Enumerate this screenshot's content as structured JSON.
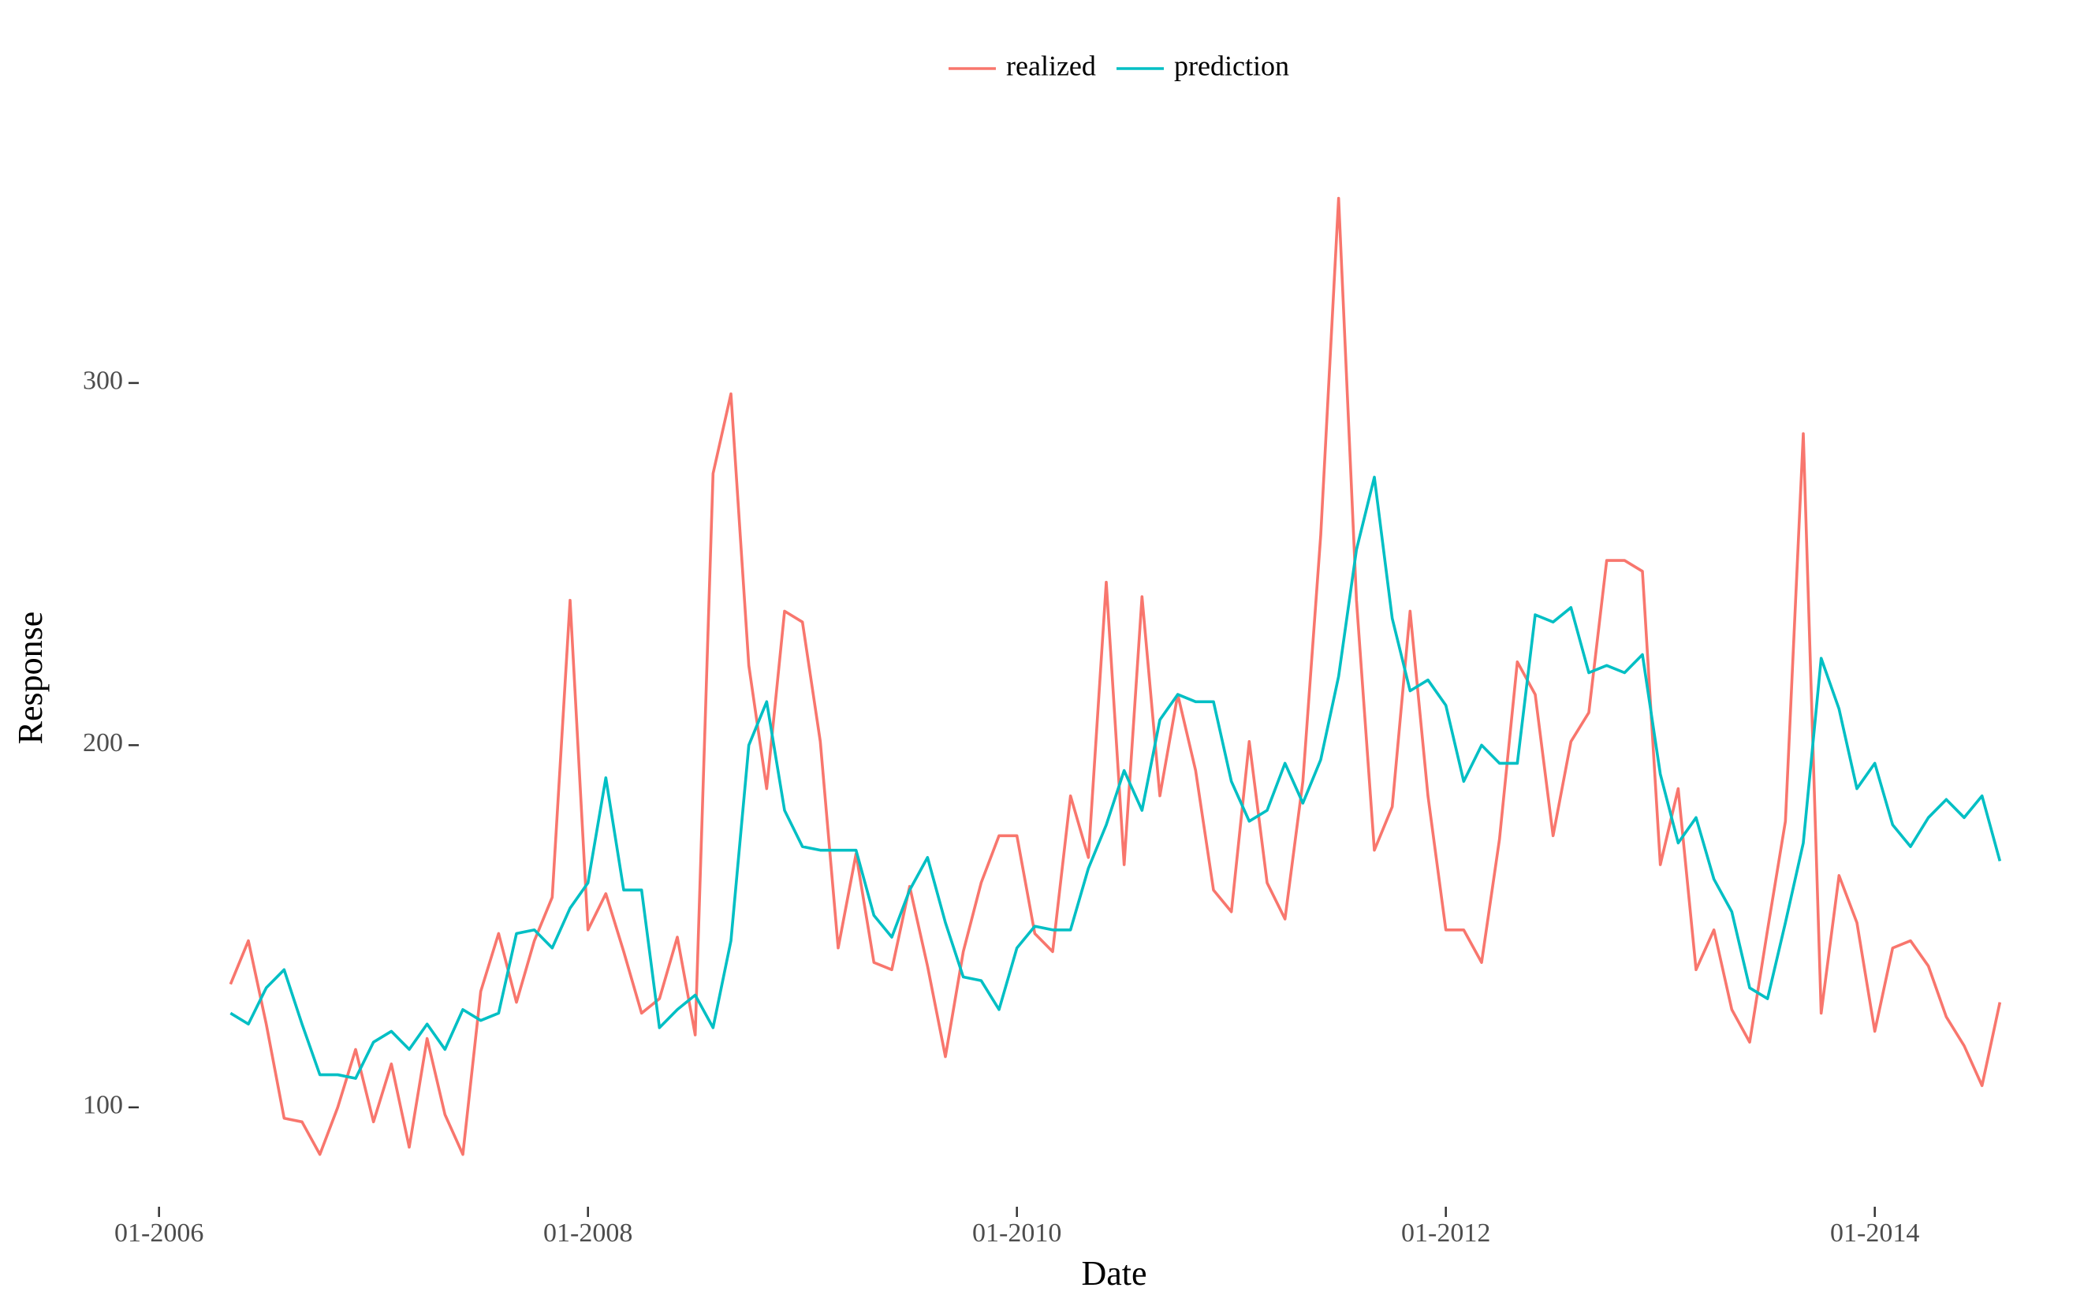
{
  "chart_data": {
    "type": "line",
    "x_label": "Date",
    "y_label": "Response",
    "x": [
      "2006-05",
      "2006-06",
      "2006-07",
      "2006-08",
      "2006-09",
      "2006-10",
      "2006-11",
      "2006-12",
      "2007-01",
      "2007-02",
      "2007-03",
      "2007-04",
      "2007-05",
      "2007-06",
      "2007-07",
      "2007-08",
      "2007-09",
      "2007-10",
      "2007-11",
      "2007-12",
      "2008-01",
      "2008-02",
      "2008-03",
      "2008-04",
      "2008-05",
      "2008-06",
      "2008-07",
      "2008-08",
      "2008-09",
      "2008-10",
      "2008-11",
      "2008-12",
      "2009-01",
      "2009-02",
      "2009-03",
      "2009-04",
      "2009-05",
      "2009-06",
      "2009-07",
      "2009-08",
      "2009-09",
      "2009-10",
      "2009-11",
      "2009-12",
      "2010-01",
      "2010-02",
      "2010-03",
      "2010-04",
      "2010-05",
      "2010-06",
      "2010-07",
      "2010-08",
      "2010-09",
      "2010-10",
      "2010-11",
      "2010-12",
      "2011-01",
      "2011-02",
      "2011-03",
      "2011-04",
      "2011-05",
      "2011-06",
      "2011-07",
      "2011-08",
      "2011-09",
      "2011-10",
      "2011-11",
      "2011-12",
      "2012-01",
      "2012-02",
      "2012-03",
      "2012-04",
      "2012-05",
      "2012-06",
      "2012-07",
      "2012-08",
      "2012-09",
      "2012-10",
      "2012-11",
      "2012-12",
      "2013-01",
      "2013-02",
      "2013-03",
      "2013-04",
      "2013-05",
      "2013-06",
      "2013-07",
      "2013-08",
      "2013-09",
      "2013-10",
      "2013-11",
      "2013-12",
      "2014-01",
      "2014-02",
      "2014-03",
      "2014-04",
      "2014-05",
      "2014-06",
      "2014-07",
      "2014-08"
    ],
    "series": [
      {
        "name": "realized",
        "color": "#F8766D",
        "values": [
          134,
          146,
          123,
          97,
          96,
          87,
          100,
          116,
          96,
          112,
          89,
          119,
          98,
          87,
          132,
          148,
          129,
          146,
          158,
          240,
          149,
          159,
          143,
          126,
          130,
          147,
          120,
          275,
          297,
          222,
          188,
          237,
          234,
          201,
          144,
          170,
          140,
          138,
          161,
          139,
          114,
          143,
          162,
          175,
          175,
          148,
          143,
          186,
          169,
          245,
          167,
          241,
          186,
          214,
          193,
          160,
          154,
          201,
          162,
          152,
          190,
          258,
          351,
          240,
          171,
          183,
          237,
          186,
          149,
          149,
          140,
          174,
          223,
          214,
          175,
          201,
          209,
          251,
          251,
          248,
          167,
          188,
          138,
          149,
          127,
          118,
          149,
          179,
          286,
          126,
          164,
          151,
          121,
          144,
          146,
          139,
          125,
          117,
          106,
          129
        ]
      },
      {
        "name": "prediction",
        "color": "#00BFC4",
        "values": [
          126,
          123,
          133,
          138,
          123,
          109,
          109,
          108,
          118,
          121,
          116,
          123,
          116,
          127,
          124,
          126,
          148,
          149,
          144,
          155,
          162,
          191,
          160,
          160,
          122,
          127,
          131,
          122,
          146,
          200,
          212,
          182,
          172,
          171,
          171,
          171,
          153,
          147,
          160,
          169,
          151,
          136,
          135,
          127,
          144,
          150,
          149,
          149,
          166,
          178,
          193,
          182,
          207,
          214,
          212,
          212,
          190,
          179,
          182,
          195,
          184,
          196,
          219,
          254,
          274,
          235,
          215,
          218,
          211,
          190,
          200,
          195,
          195,
          236,
          234,
          238,
          220,
          222,
          220,
          225,
          192,
          173,
          180,
          163,
          154,
          133,
          130,
          151,
          173,
          224,
          210,
          188,
          195,
          178,
          172,
          180,
          185,
          180,
          186,
          168
        ]
      }
    ],
    "xlim": [
      "2005-12",
      "2014-12"
    ],
    "xticks": [
      {
        "value": "2006-01",
        "label": "01-2006"
      },
      {
        "value": "2008-01",
        "label": "01-2008"
      },
      {
        "value": "2010-01",
        "label": "01-2010"
      },
      {
        "value": "2012-01",
        "label": "01-2012"
      },
      {
        "value": "2014-01",
        "label": "01-2014"
      }
    ],
    "ylim": [
      73,
      362
    ],
    "yticks": [
      100,
      200,
      300
    ],
    "grid": false,
    "legend": "top"
  }
}
